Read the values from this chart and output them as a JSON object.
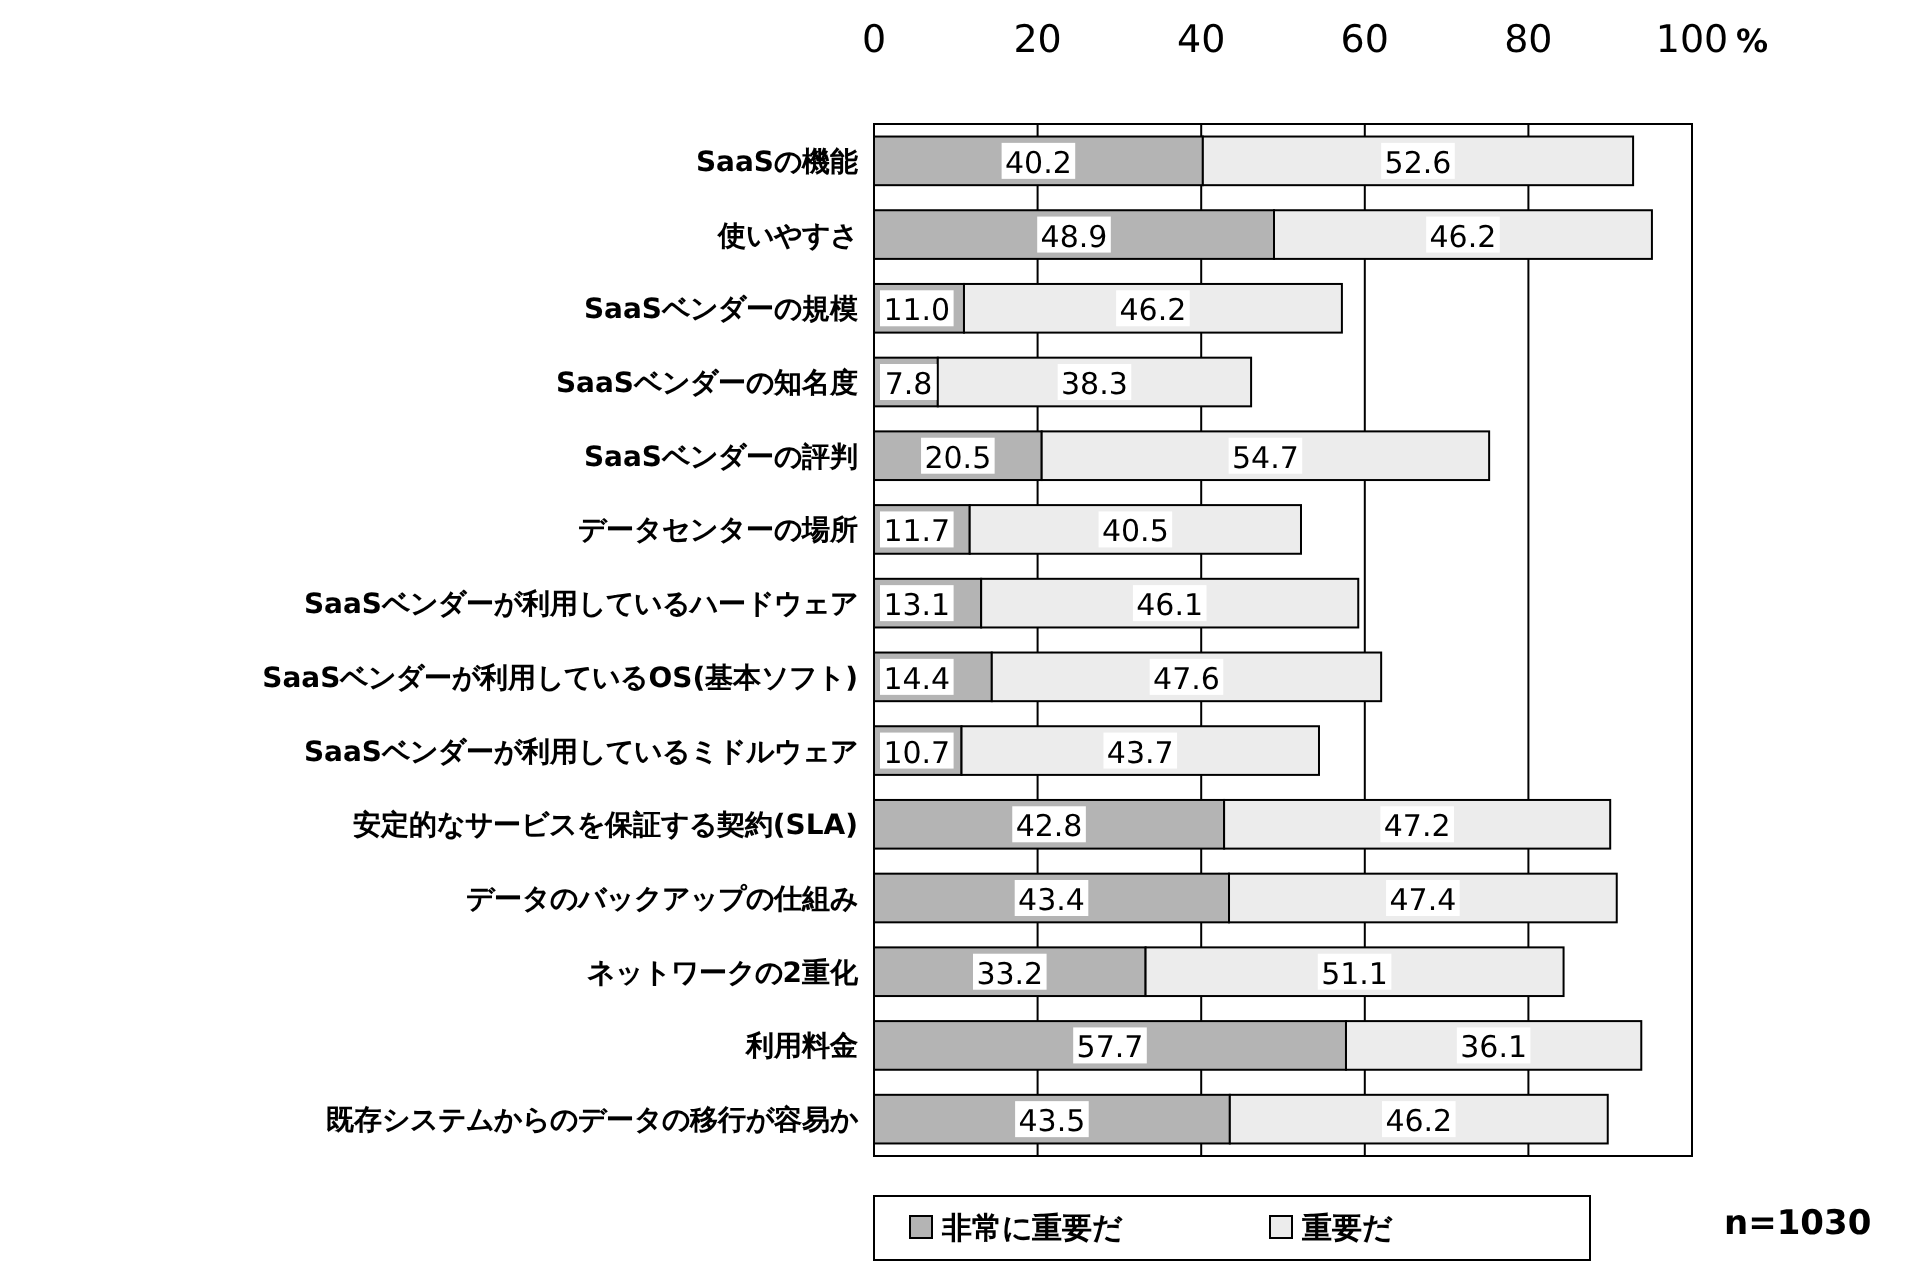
{
  "chart_data": {
    "type": "bar",
    "orientation": "horizontal",
    "stacked": true,
    "categories": [
      "SaaSの機能",
      "使いやすさ",
      "SaaSベンダーの規模",
      "SaaSベンダーの知名度",
      "SaaSベンダーの評判",
      "データセンターの場所",
      "SaaSベンダーが利用しているハードウェア",
      "SaaSベンダーが利用しているOS(基本ソフト)",
      "SaaSベンダーが利用しているミドルウェア",
      "安定的なサービスを保証する契約(SLA)",
      "データのバックアップの仕組み",
      "ネットワークの2重化",
      "利用料金",
      "既存システムからのデータの移行が容易か"
    ],
    "series": [
      {
        "name": "非常に重要だ",
        "color": "#b4b4b4",
        "values": [
          40.2,
          48.9,
          11.0,
          7.8,
          20.5,
          11.7,
          13.1,
          14.4,
          10.7,
          42.8,
          43.4,
          33.2,
          57.7,
          43.5
        ],
        "value_labels": [
          "40.2",
          "48.9",
          "11.0",
          "7.8",
          "20.5",
          "11.7",
          "13.1",
          "14.4",
          "10.7",
          "42.8",
          "43.4",
          "33.2",
          "57.7",
          "43.5"
        ]
      },
      {
        "name": "重要だ",
        "color": "#ececec",
        "values": [
          52.6,
          46.2,
          46.2,
          38.3,
          54.7,
          40.5,
          46.1,
          47.6,
          43.7,
          47.2,
          47.4,
          51.1,
          36.1,
          46.2
        ],
        "value_labels": [
          "52.6",
          "46.2",
          "46.2",
          "38.3",
          "54.7",
          "40.5",
          "46.1",
          "47.6",
          "43.7",
          "47.2",
          "47.4",
          "51.1",
          "36.1",
          "46.2"
        ]
      }
    ],
    "xlabel": "%",
    "xlim": [
      0,
      100
    ],
    "xticks": [
      0,
      20,
      40,
      60,
      80,
      100
    ],
    "grid": "x",
    "legend": "bottom",
    "annotations": [
      "n=1030"
    ]
  }
}
